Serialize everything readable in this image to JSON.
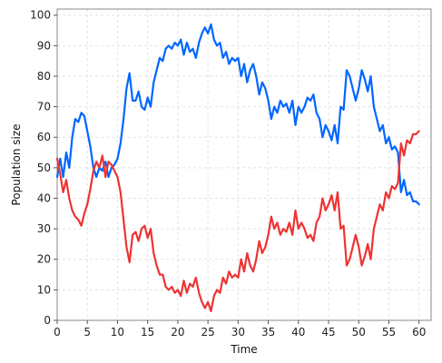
{
  "chart_data": {
    "type": "line",
    "title": "",
    "xlabel": "Time",
    "ylabel": "Population size",
    "xlim": [
      0,
      62
    ],
    "ylim": [
      0,
      102
    ],
    "xticks": [
      0,
      5,
      10,
      15,
      20,
      25,
      30,
      35,
      40,
      45,
      50,
      55,
      60
    ],
    "yticks": [
      0,
      10,
      20,
      30,
      40,
      50,
      60,
      70,
      80,
      90,
      100
    ],
    "grid": true,
    "legend": "none",
    "series": [
      {
        "color": "#0066ff",
        "x": [
          0,
          0.5,
          1,
          1.5,
          2,
          2.5,
          3,
          3.5,
          4,
          4.5,
          5,
          5.5,
          6,
          6.5,
          7,
          7.5,
          8,
          8.5,
          9,
          9.5,
          10,
          10.5,
          11,
          11.5,
          12,
          12.5,
          13,
          13.5,
          14,
          14.5,
          15,
          15.5,
          16,
          16.5,
          17,
          17.5,
          18,
          18.5,
          19,
          19.5,
          20,
          20.5,
          21,
          21.5,
          22,
          22.5,
          23,
          23.5,
          24,
          24.5,
          25,
          25.5,
          26,
          26.5,
          27,
          27.5,
          28,
          28.5,
          29,
          29.5,
          30,
          30.5,
          31,
          31.5,
          32,
          32.5,
          33,
          33.5,
          34,
          34.5,
          35,
          35.5,
          36,
          36.5,
          37,
          37.5,
          38,
          38.5,
          39,
          39.5,
          40,
          40.5,
          41,
          41.5,
          42,
          42.5,
          43,
          43.5,
          44,
          44.5,
          45,
          45.5,
          46,
          46.5,
          47,
          47.5,
          48,
          48.5,
          49,
          49.5,
          50,
          50.5,
          51,
          51.5,
          52,
          52.5,
          53,
          53.5,
          54,
          54.5,
          55,
          55.5,
          56,
          56.5,
          57,
          57.5,
          58,
          58.5,
          59,
          59.5,
          60
        ],
        "values": [
          47,
          53,
          47,
          55,
          50,
          60,
          66,
          65,
          68,
          67,
          62,
          57,
          50,
          47,
          50,
          49,
          52,
          47,
          50,
          51,
          53,
          58,
          66,
          76,
          81,
          72,
          72,
          75,
          70,
          69,
          73,
          70,
          78,
          82,
          86,
          85,
          89,
          90,
          89,
          91,
          90,
          92,
          87,
          91,
          88,
          89,
          86,
          91,
          94,
          96,
          94,
          97,
          92,
          90,
          91,
          86,
          88,
          84,
          86,
          85,
          86,
          80,
          84,
          78,
          82,
          84,
          80,
          74,
          78,
          76,
          72,
          66,
          70,
          68,
          72,
          70,
          71,
          68,
          72,
          64,
          70,
          68,
          70,
          73,
          72,
          74,
          68,
          66,
          60,
          64,
          62,
          59,
          64,
          58,
          70,
          69,
          82,
          80,
          76,
          72,
          76,
          82,
          79,
          75,
          80,
          70,
          66,
          62,
          64,
          58,
          60,
          56,
          57,
          55,
          42,
          46,
          41,
          42,
          39,
          39,
          38
        ]
      },
      {
        "color": "#ee3333",
        "x": [
          0,
          0.5,
          1,
          1.5,
          2,
          2.5,
          3,
          3.5,
          4,
          4.5,
          5,
          5.5,
          6,
          6.5,
          7,
          7.5,
          8,
          8.5,
          9,
          9.5,
          10,
          10.5,
          11,
          11.5,
          12,
          12.5,
          13,
          13.5,
          14,
          14.5,
          15,
          15.5,
          16,
          16.5,
          17,
          17.5,
          18,
          18.5,
          19,
          19.5,
          20,
          20.5,
          21,
          21.5,
          22,
          22.5,
          23,
          23.5,
          24,
          24.5,
          25,
          25.5,
          26,
          26.5,
          27,
          27.5,
          28,
          28.5,
          29,
          29.5,
          30,
          30.5,
          31,
          31.5,
          32,
          32.5,
          33,
          33.5,
          34,
          34.5,
          35,
          35.5,
          36,
          36.5,
          37,
          37.5,
          38,
          38.5,
          39,
          39.5,
          40,
          40.5,
          41,
          41.5,
          42,
          42.5,
          43,
          43.5,
          44,
          44.5,
          45,
          45.5,
          46,
          46.5,
          47,
          47.5,
          48,
          48.5,
          49,
          49.5,
          50,
          50.5,
          51,
          51.5,
          52,
          52.5,
          53,
          53.5,
          54,
          54.5,
          55,
          55.5,
          56,
          56.5,
          57,
          57.5,
          58,
          58.5,
          59,
          59.5,
          60
        ],
        "values": [
          53,
          48,
          42,
          46,
          40,
          36,
          34,
          33,
          31,
          35,
          38,
          43,
          49,
          52,
          50,
          54,
          47,
          52,
          51,
          49,
          47,
          42,
          33,
          24,
          19,
          28,
          29,
          26,
          30,
          31,
          27,
          30,
          22,
          18,
          15,
          15,
          11,
          10,
          11,
          9,
          10,
          8,
          13,
          9,
          12,
          11,
          14,
          9,
          6,
          4,
          6,
          3,
          8,
          10,
          9,
          14,
          12,
          16,
          14,
          15,
          14,
          20,
          16,
          22,
          18,
          16,
          20,
          26,
          22,
          24,
          28,
          34,
          30,
          32,
          28,
          30,
          29,
          32,
          28,
          36,
          30,
          32,
          30,
          27,
          28,
          26,
          32,
          34,
          40,
          36,
          38,
          41,
          36,
          42,
          30,
          31,
          18,
          20,
          24,
          28,
          24,
          18,
          21,
          25,
          20,
          30,
          34,
          38,
          36,
          42,
          40,
          44,
          43,
          45,
          58,
          54,
          59,
          58,
          61,
          61,
          62
        ]
      }
    ]
  }
}
